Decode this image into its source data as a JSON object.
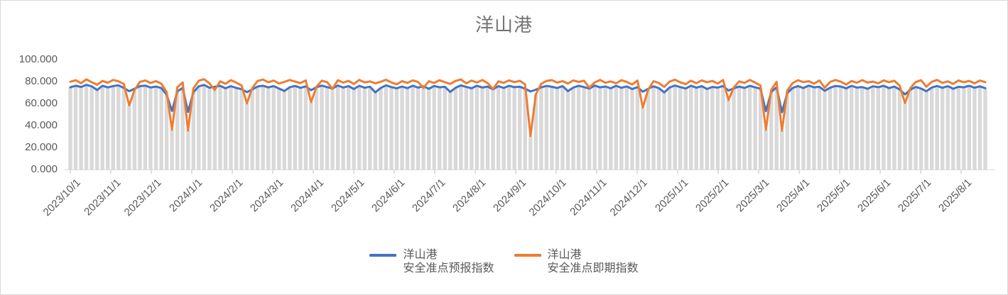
{
  "title": "洋山港",
  "colors": {
    "title_text": "#737373",
    "axis_text": "#595959",
    "axis_line": "#D9D9D9",
    "tick_mark": "#BFBFBF",
    "chart_border": "#D9D9D9",
    "background": "#FFFFFF",
    "background_bars": "#D9D9D9",
    "series_forecast": "#4472C4",
    "series_spot": "#ED7D31"
  },
  "chart_data": {
    "type": "line",
    "title": "洋山港",
    "grid": false,
    "legend_position": "bottom-center",
    "ylim": [
      0,
      100
    ],
    "y_tick_labels": [
      "0.000",
      "20.000",
      "40.000",
      "60.000",
      "80.000",
      "100.000"
    ],
    "x_tick_labels": [
      "2023/10/1",
      "2023/11/1",
      "2023/12/1",
      "2024/1/1",
      "2024/2/1",
      "2024/3/1",
      "2024/4/1",
      "2024/5/1",
      "2024/6/1",
      "2024/7/1",
      "2024/8/1",
      "2024/9/1",
      "2024/10/1",
      "2024/11/1",
      "2024/12/1",
      "2025/1/1",
      "2025/2/1",
      "2025/3/1",
      "2025/4/1",
      "2025/5/1",
      "2025/6/1",
      "2025/7/1",
      "2025/8/1"
    ],
    "x_start": "2023/10/1",
    "x_end": "2025/8/16",
    "x_step_days": 4,
    "bar_color": "#D9D9D9",
    "series": [
      {
        "name": "洋山港安全准点预报指数",
        "legend_lines": [
          "洋山港",
          "安全准点预报指数"
        ],
        "color": "#4472C4",
        "values": [
          74.8,
          76.2,
          75.1,
          77.0,
          75.6,
          72.3,
          76.1,
          74.7,
          75.9,
          76.6,
          74.2,
          71.2,
          73.5,
          75.8,
          76.3,
          74.6,
          75.4,
          74.1,
          68.0,
          53.2,
          71.0,
          74.3,
          52.4,
          70.2,
          75.7,
          76.9,
          74.4,
          75.3,
          76.1,
          73.9,
          75.8,
          74.2,
          73.1,
          70.3,
          72.8,
          75.5,
          76.2,
          74.7,
          75.9,
          73.6,
          71.4,
          74.8,
          76.0,
          74.3,
          75.6,
          72.1,
          74.9,
          76.3,
          75.0,
          73.7,
          76.4,
          74.6,
          75.8,
          73.2,
          76.1,
          74.4,
          75.3,
          70.2,
          74.1,
          76.6,
          75.0,
          73.8,
          75.5,
          74.0,
          76.2,
          74.5,
          75.7,
          73.4,
          76.0,
          74.8,
          75.2,
          70.6,
          74.3,
          76.5,
          75.1,
          73.9,
          76.2,
          74.6,
          75.4,
          73.0,
          75.8,
          74.2,
          76.1,
          74.9,
          75.3,
          73.5,
          71.0,
          72.6,
          74.8,
          76.0,
          75.2,
          74.1,
          75.9,
          71.3,
          74.5,
          76.2,
          75.0,
          73.6,
          76.3,
          74.7,
          75.5,
          73.9,
          76.1,
          74.3,
          75.6,
          73.2,
          74.9,
          70.8,
          73.4,
          75.7,
          74.0,
          70.1,
          74.6,
          76.4,
          75.0,
          73.7,
          76.2,
          74.4,
          75.8,
          73.3,
          75.1,
          74.5,
          76.0,
          71.9,
          73.8,
          75.4,
          74.2,
          76.1,
          74.7,
          73.5,
          53.0,
          70.4,
          74.9,
          52.1,
          69.5,
          74.2,
          75.9,
          74.1,
          76.3,
          74.8,
          75.2,
          71.6,
          74.4,
          76.0,
          75.5,
          73.8,
          76.1,
          74.5,
          75.0,
          73.4,
          75.7,
          74.9,
          76.2,
          74.0,
          75.4,
          72.8,
          68.3,
          72.5,
          75.1,
          73.7,
          71.2,
          74.6,
          76.0,
          74.3,
          75.8,
          73.5,
          75.2,
          74.8,
          76.1,
          74.4,
          75.6,
          74.0
        ]
      },
      {
        "name": "洋山港安全准点即期指数",
        "legend_lines": [
          "洋山港",
          "安全准点即期指数"
        ],
        "color": "#ED7D31",
        "values": [
          79.8,
          81.2,
          78.5,
          82.0,
          79.4,
          77.1,
          80.6,
          78.9,
          81.5,
          80.2,
          77.8,
          58.3,
          72.4,
          79.6,
          81.0,
          78.7,
          80.4,
          78.1,
          70.5,
          36.2,
          74.8,
          79.2,
          35.4,
          73.6,
          80.8,
          82.1,
          78.4,
          72.3,
          80.2,
          78.0,
          81.3,
          79.1,
          76.5,
          60.2,
          74.1,
          80.5,
          81.8,
          79.3,
          80.9,
          78.2,
          79.7,
          81.4,
          80.0,
          78.6,
          81.1,
          61.3,
          75.2,
          80.8,
          79.5,
          73.4,
          81.2,
          79.0,
          80.6,
          77.8,
          81.5,
          79.3,
          80.1,
          78.4,
          79.8,
          81.6,
          79.2,
          77.5,
          80.4,
          78.8,
          81.0,
          79.6,
          74.2,
          80.3,
          78.7,
          81.2,
          79.4,
          77.9,
          80.5,
          82.0,
          78.3,
          80.9,
          79.1,
          81.4,
          78.6,
          73.2,
          80.2,
          78.8,
          81.1,
          79.5,
          80.7,
          77.4,
          30.5,
          68.3,
          77.9,
          80.6,
          81.3,
          79.0,
          80.4,
          78.1,
          81.0,
          79.7,
          80.8,
          74.5,
          79.2,
          81.5,
          78.9,
          80.1,
          78.4,
          81.2,
          79.6,
          77.3,
          80.9,
          56.4,
          72.8,
          80.3,
          78.7,
          75.1,
          80.0,
          81.7,
          79.3,
          77.6,
          80.8,
          78.5,
          81.1,
          79.4,
          80.6,
          78.2,
          81.4,
          63.2,
          74.6,
          80.1,
          78.8,
          81.5,
          79.0,
          76.4,
          36.1,
          72.5,
          79.8,
          35.2,
          71.8,
          78.6,
          81.2,
          79.5,
          80.3,
          78.1,
          81.0,
          74.3,
          79.7,
          81.4,
          79.9,
          77.2,
          80.5,
          78.9,
          81.3,
          79.1,
          80.0,
          78.3,
          81.1,
          79.4,
          80.8,
          76.2,
          60.5,
          74.0,
          79.6,
          81.2,
          75.3,
          79.8,
          81.5,
          78.7,
          80.2,
          77.9,
          81.0,
          79.3,
          80.6,
          78.4,
          80.9,
          79.5
        ]
      }
    ]
  }
}
